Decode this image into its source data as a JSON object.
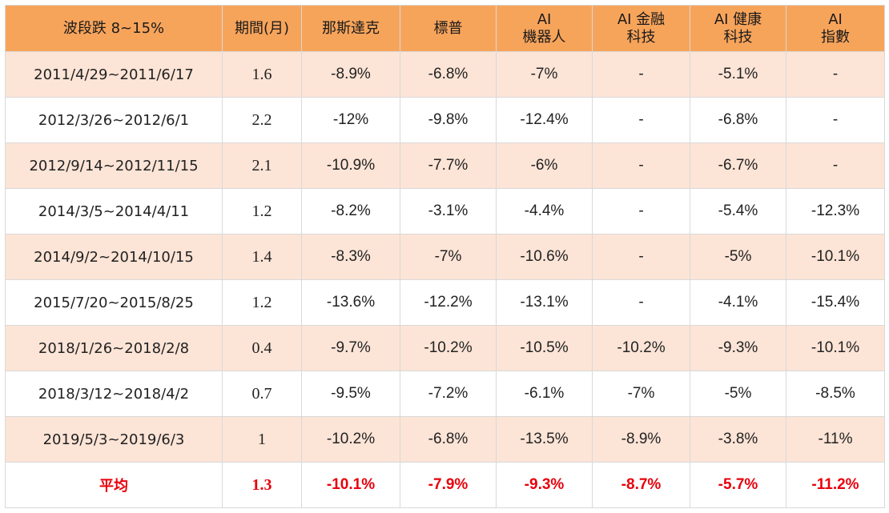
{
  "table": {
    "headers": [
      {
        "line1": "波段跌 8~15%",
        "line2": ""
      },
      {
        "line1": "期間(月)",
        "line2": ""
      },
      {
        "line1": "那斯達克",
        "line2": ""
      },
      {
        "line1": "標普",
        "line2": ""
      },
      {
        "line1": "AI",
        "line2": "機器人"
      },
      {
        "line1": "AI 金融",
        "line2": "科技"
      },
      {
        "line1": "AI 健康",
        "line2": "科技"
      },
      {
        "line1": "AI",
        "line2": "指數"
      }
    ],
    "rows": [
      [
        "2011/4/29~2011/6/17",
        "1.6",
        "-8.9%",
        "-6.8%",
        "-7%",
        "-",
        "-5.1%",
        "-"
      ],
      [
        "2012/3/26~2012/6/1",
        "2.2",
        "-12%",
        "-9.8%",
        "-12.4%",
        "-",
        "-6.8%",
        "-"
      ],
      [
        "2012/9/14~2012/11/15",
        "2.1",
        "-10.9%",
        "-7.7%",
        "-6%",
        "-",
        "-6.7%",
        "-"
      ],
      [
        "2014/3/5~2014/4/11",
        "1.2",
        "-8.2%",
        "-3.1%",
        "-4.4%",
        "-",
        "-5.4%",
        "-12.3%"
      ],
      [
        "2014/9/2~2014/10/15",
        "1.4",
        "-8.3%",
        "-7%",
        "-10.6%",
        "-",
        "-5%",
        "-10.1%"
      ],
      [
        "2015/7/20~2015/8/25",
        "1.2",
        "-13.6%",
        "-12.2%",
        "-13.1%",
        "-",
        "-4.1%",
        "-15.4%"
      ],
      [
        "2018/1/26~2018/2/8",
        "0.4",
        "-9.7%",
        "-10.2%",
        "-10.5%",
        "-10.2%",
        "-9.3%",
        "-10.1%"
      ],
      [
        "2018/3/12~2018/4/2",
        "0.7",
        "-9.5%",
        "-7.2%",
        "-6.1%",
        "-7%",
        "-5%",
        "-8.5%"
      ],
      [
        "2019/5/3~2019/6/3",
        "1",
        "-10.2%",
        "-6.8%",
        "-13.5%",
        "-8.9%",
        "-3.8%",
        "-11%"
      ]
    ],
    "average": [
      "平均",
      "1.3",
      "-10.1%",
      "-7.9%",
      "-9.3%",
      "-8.7%",
      "-5.7%",
      "-11.2%"
    ]
  },
  "colors": {
    "header_bg": "#f7a45b",
    "band_bg": "#fce4d6",
    "average_text": "#e8000b"
  }
}
